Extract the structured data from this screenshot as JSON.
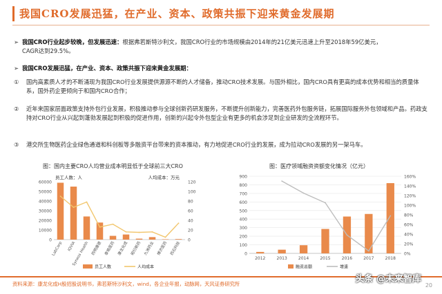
{
  "header": {
    "title": "我国CRO发展迅猛，在产业、资本、政策共振下迎来黄金发展期"
  },
  "bullets": [
    {
      "mark": "➢",
      "bold": "我国CRO行业起步较晚，但发展迅速：",
      "text": "根据弗若斯特沙利文，我国CRO行业的市场规模由2014年的21亿美元迅速上升至2018年59亿美元，",
      "text2": "CAGR达到29.5%。"
    },
    {
      "mark": "➢",
      "bold": "我国CRO发展迅猛，在产业、资本、政策共振下迎来黄金发展期：",
      "text": ""
    }
  ],
  "points": [
    {
      "n": "①",
      "t": "国内高素质人才的不断涌现为我国CRO行业发展提供源源不断的人才储备，推动CRO技术发展。与国外相比，国内CRO具有更高的成本优势和相当的质量体系，国外药企更倾向于和国内CRO合作；"
    },
    {
      "n": "②",
      "t": "近年来国家层面政策支持外包行业发展，积极推动参与全球创新药研发服务，不断提升创新能力，完善医药外包服务链，拓展国际服务外包领域和产品。药政支持对CRO行业从兴起到蓬勃发展起到积极的促进作用，创新的兴起令外包型企业有更多的机会涉足到企业研发的全流程环节。"
    },
    {
      "n": "③",
      "t": "港交所生物医药企业绿色通道和科创板等多融资平台带来的资本推动，有力地促进CRO行业的发展，成为拉动CRO发展的另一架马车。"
    }
  ],
  "fig1": {
    "caption": "图：国内主要CRO人均营业成本明显低于全球前三大CRO",
    "left_unit": "员工人数：人",
    "right_unit": "人均成本：万元",
    "legend_bar": "员工人数",
    "legend_line": "人均成本"
  },
  "fig2": {
    "caption": "图：医疗领域融资资额变化情况（亿元）",
    "legend_bar": "融资总额",
    "legend_line": "增速"
  },
  "chart_data": [
    {
      "type": "bar",
      "title": "图：国内主要CRO人均营业成本明显低于全球前三大CRO",
      "categories": [
        "LabCorp",
        "IQVIA",
        "Syneos Health",
        "药明康德",
        "泰格医药",
        "康龙化成",
        "昭衍新药",
        "九洲药业",
        "博济医药",
        "药石科技"
      ],
      "series": [
        {
          "name": "员工人数",
          "axis": "left",
          "values": [
            59000,
            55000,
            24000,
            17700,
            3900,
            5300,
            1000,
            2600,
            400,
            600
          ]
        },
        {
          "name": "人均成本",
          "axis": "right",
          "type": "line",
          "values": [
            90,
            67,
            78,
            26,
            32,
            16,
            15,
            16,
            5,
            34
          ]
        }
      ],
      "ylim_left": [
        0,
        60000
      ],
      "yticks_left": [
        0,
        10000,
        20000,
        30000,
        40000,
        50000,
        60000
      ],
      "ylim_right": [
        0,
        120
      ],
      "yticks_right": [
        0,
        20,
        40,
        60,
        80,
        100,
        120
      ],
      "bar_color": "#e98a4b",
      "line_color": "#f2c66d"
    },
    {
      "type": "bar",
      "title": "图：医疗领域融资资额变化情况（亿元）",
      "categories": [
        "2012",
        "2013",
        "2014",
        "2015",
        "2016",
        "2017",
        "2018"
      ],
      "series": [
        {
          "name": "融资总额",
          "axis": "left",
          "values": [
            17,
            43,
            95,
            285,
            430,
            460,
            820
          ]
        },
        {
          "name": "增速",
          "axis": "right",
          "type": "line",
          "values": [
            null,
            150,
            125,
            105,
            38,
            5,
            78
          ]
        }
      ],
      "ylim_left": [
        0,
        900
      ],
      "yticks_left": [
        0,
        100,
        200,
        300,
        400,
        500,
        600,
        700,
        800,
        900
      ],
      "ylim_right": [
        0,
        160
      ],
      "yticks_right": [
        "0%",
        "20%",
        "40%",
        "60%",
        "80%",
        "100%",
        "120%",
        "140%",
        "160%"
      ],
      "bar_color": "#e98a4b",
      "line_color": "#bdbdbd"
    }
  ],
  "footer": {
    "source": "资料来源：康龙化成H股招股说明书，弗若斯特沙利文，wind，各企业年报，动脉网，天风证券研究所",
    "page": "20",
    "watermark": "头条 @未来智库"
  }
}
